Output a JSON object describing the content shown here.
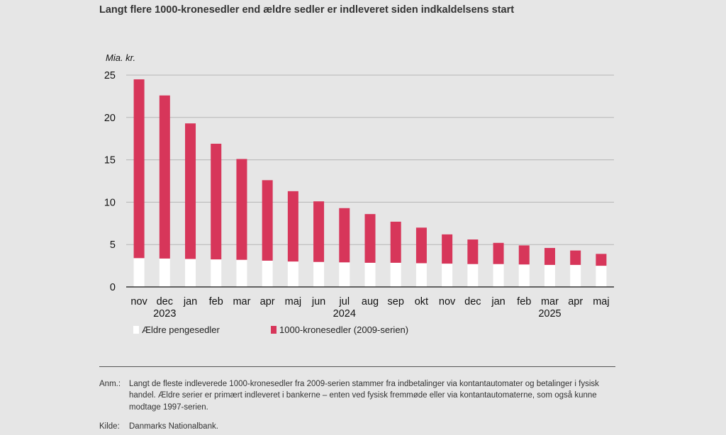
{
  "title": "Langt flere 1000-kronesedler end ældre sedler er indleveret siden indkaldelsens start",
  "colors": {
    "older": "#ffffff",
    "new": "#d7365a",
    "grid": "#b5b5b5",
    "background": "#e6e6e6"
  },
  "chart_data": {
    "type": "bar",
    "stacked": true,
    "ylabel": "Mia. kr.",
    "ylim": [
      0,
      25
    ],
    "yticks": [
      0,
      5,
      10,
      15,
      20,
      25
    ],
    "grid": true,
    "categories": [
      "nov",
      "dec",
      "jan",
      "feb",
      "mar",
      "apr",
      "maj",
      "jun",
      "jul",
      "aug",
      "sep",
      "okt",
      "nov",
      "dec",
      "jan",
      "feb",
      "mar",
      "apr",
      "maj"
    ],
    "year_labels": [
      {
        "label": "2023",
        "category_index": 1
      },
      {
        "label": "2024",
        "category_index": 8
      },
      {
        "label": "2025",
        "category_index": 16
      }
    ],
    "series": [
      {
        "name": "Ældre pengesedler",
        "color": "#ffffff",
        "values": [
          3.4,
          3.35,
          3.3,
          3.25,
          3.2,
          3.1,
          3.0,
          2.95,
          2.9,
          2.85,
          2.85,
          2.8,
          2.75,
          2.7,
          2.7,
          2.65,
          2.6,
          2.6,
          2.5
        ]
      },
      {
        "name": "1000-kronesedler (2009-serien)",
        "color": "#d7365a",
        "values": [
          21.1,
          19.25,
          16.0,
          13.65,
          11.9,
          9.5,
          8.3,
          7.15,
          6.4,
          5.75,
          4.85,
          4.2,
          3.45,
          2.9,
          2.5,
          2.25,
          2.0,
          1.7,
          1.4
        ]
      }
    ]
  },
  "notes": {
    "anm_label": "Anm.:",
    "anm_text": "Langt de fleste indleverede 1000-kronesedler fra 2009-serien stammer fra indbetalinger via kontantautomater og betalinger i fysisk handel. Ældre serier er primært indleveret i bankerne – enten ved fysisk fremmøde eller via kontantautomaterne, som også kunne modtage 1997-serien.",
    "kilde_label": "Kilde:",
    "kilde_text": "Danmarks Nationalbank."
  }
}
